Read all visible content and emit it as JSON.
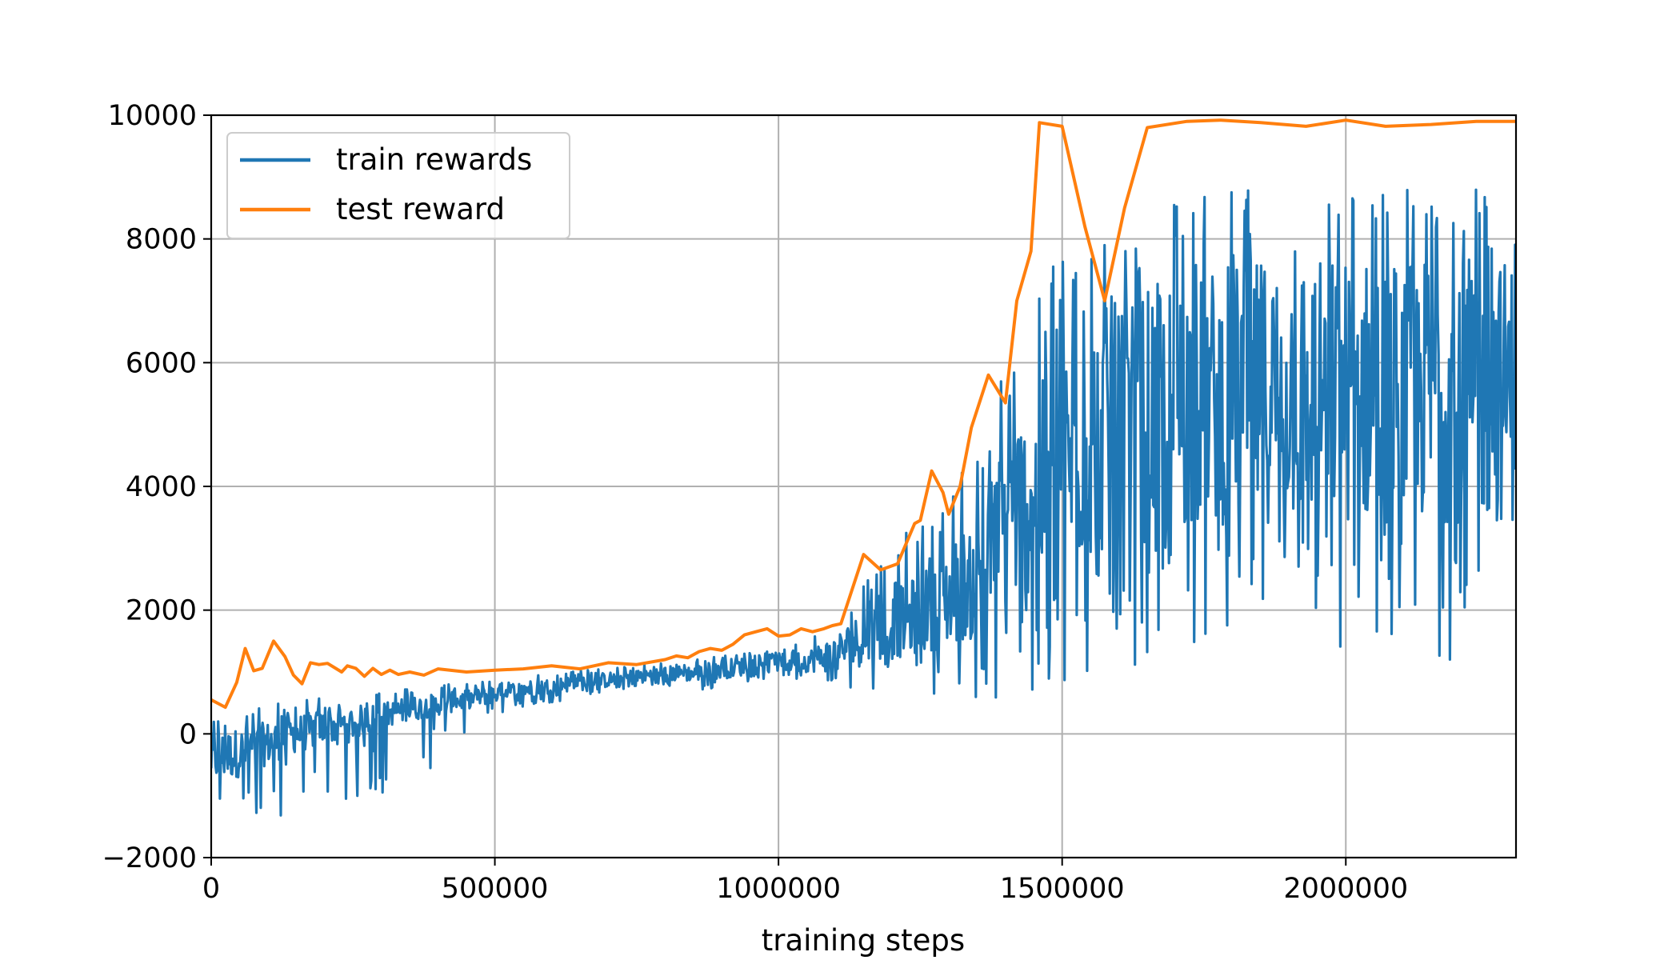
{
  "chart_data": {
    "type": "line",
    "title": "",
    "xlabel": "training steps",
    "ylabel": "",
    "xlim": [
      0,
      2300000
    ],
    "ylim": [
      -2000,
      10000
    ],
    "xticks": [
      0,
      500000,
      1000000,
      1500000,
      2000000
    ],
    "xtick_labels": [
      "0",
      "500000",
      "1000000",
      "1500000",
      "2000000"
    ],
    "yticks": [
      -2000,
      0,
      2000,
      4000,
      6000,
      8000,
      10000
    ],
    "ytick_labels": [
      "−2000",
      "0",
      "2000",
      "4000",
      "6000",
      "8000",
      "10000"
    ],
    "grid": true,
    "legend_position": "top-left",
    "colors": {
      "train": "#1f77b4",
      "test": "#ff7f0e",
      "grid": "#b0b0b0"
    },
    "series": [
      {
        "name": "train rewards",
        "kind": "noisy-band",
        "x": [
          0,
          50000,
          100000,
          150000,
          200000,
          250000,
          300000,
          350000,
          400000,
          450000,
          500000,
          550000,
          600000,
          650000,
          700000,
          750000,
          800000,
          850000,
          900000,
          950000,
          1000000,
          1050000,
          1100000,
          1150000,
          1200000,
          1250000,
          1300000,
          1350000,
          1400000,
          1450000,
          1500000,
          1550000,
          1600000,
          1650000,
          1700000,
          1750000,
          1800000,
          1850000,
          1900000,
          1950000,
          2000000,
          2050000,
          2100000,
          2150000,
          2200000,
          2250000,
          2300000
        ],
        "lower": [
          -1200,
          -1500,
          -1500,
          -1400,
          -1300,
          -1200,
          -1000,
          -900,
          -600,
          -100,
          300,
          400,
          500,
          600,
          700,
          750,
          800,
          600,
          800,
          850,
          900,
          850,
          800,
          700,
          800,
          700,
          600,
          400,
          500,
          500,
          600,
          800,
          1000,
          1200,
          1400,
          1500,
          1500,
          1400,
          1300,
          1200,
          1100,
          1000,
          1000,
          1000,
          1100,
          1000,
          1000
        ],
        "upper": [
          200,
          400,
          500,
          550,
          600,
          650,
          700,
          750,
          800,
          850,
          900,
          950,
          1000,
          1050,
          1050,
          1100,
          1150,
          1200,
          1300,
          1350,
          1400,
          1500,
          2000,
          2500,
          3000,
          3500,
          4000,
          4800,
          6500,
          7200,
          8000,
          8200,
          8400,
          8500,
          8600,
          8700,
          8800,
          8800,
          8800,
          8800,
          8800,
          8800,
          8800,
          8800,
          8800,
          8800,
          8800
        ],
        "dense_lower": [
          -800,
          -700,
          -500,
          -300,
          -200,
          -100,
          100,
          200,
          300,
          400,
          500,
          600,
          650,
          700,
          750,
          800,
          850,
          850,
          900,
          950,
          1000,
          1000,
          1000,
          1100,
          1200,
          1300,
          1400,
          1600,
          2000,
          2300,
          2500,
          2800,
          3000,
          3200,
          3300,
          3300,
          3400,
          3400,
          3400,
          3400,
          3400,
          3400,
          3400,
          3400,
          3400,
          3400,
          3400
        ],
        "dense_upper": [
          0,
          100,
          200,
          300,
          400,
          450,
          500,
          600,
          650,
          700,
          800,
          850,
          900,
          950,
          1000,
          1050,
          1100,
          1100,
          1200,
          1250,
          1300,
          1350,
          1600,
          2000,
          2300,
          2600,
          3000,
          3600,
          4800,
          5500,
          6200,
          6800,
          7000,
          7200,
          7400,
          7500,
          7600,
          7700,
          7700,
          7700,
          7700,
          7700,
          7700,
          7700,
          7700,
          7700,
          7700
        ]
      },
      {
        "name": "test reward",
        "kind": "line",
        "x": [
          0,
          25000,
          45000,
          60000,
          75000,
          90000,
          110000,
          130000,
          145000,
          160000,
          175000,
          190000,
          205000,
          230000,
          240000,
          255000,
          270000,
          285000,
          300000,
          315000,
          330000,
          350000,
          375000,
          400000,
          450000,
          500000,
          550000,
          600000,
          650000,
          700000,
          750000,
          800000,
          820000,
          840000,
          860000,
          880000,
          900000,
          920000,
          940000,
          960000,
          980000,
          1000000,
          1020000,
          1040000,
          1060000,
          1080000,
          1095000,
          1110000,
          1150000,
          1180000,
          1210000,
          1240000,
          1250000,
          1270000,
          1290000,
          1300000,
          1320000,
          1340000,
          1370000,
          1400000,
          1420000,
          1445000,
          1460000,
          1500000,
          1540000,
          1575000,
          1610000,
          1650000,
          1720000,
          1780000,
          1850000,
          1930000,
          2000000,
          2070000,
          2150000,
          2230000,
          2300000
        ],
        "y": [
          550,
          430,
          830,
          1380,
          1020,
          1060,
          1500,
          1250,
          950,
          810,
          1150,
          1120,
          1140,
          1000,
          1100,
          1060,
          930,
          1060,
          960,
          1030,
          960,
          1000,
          950,
          1050,
          1000,
          1030,
          1050,
          1100,
          1050,
          1150,
          1120,
          1200,
          1260,
          1230,
          1330,
          1380,
          1350,
          1450,
          1600,
          1650,
          1700,
          1580,
          1600,
          1700,
          1650,
          1700,
          1750,
          1780,
          2900,
          2650,
          2750,
          3400,
          3450,
          4250,
          3900,
          3550,
          4000,
          4950,
          5800,
          5350,
          7000,
          7800,
          9880,
          9820,
          8200,
          7000,
          8500,
          9800,
          9900,
          9920,
          9880,
          9820,
          9920,
          9820,
          9850,
          9900,
          9900
        ]
      }
    ]
  }
}
